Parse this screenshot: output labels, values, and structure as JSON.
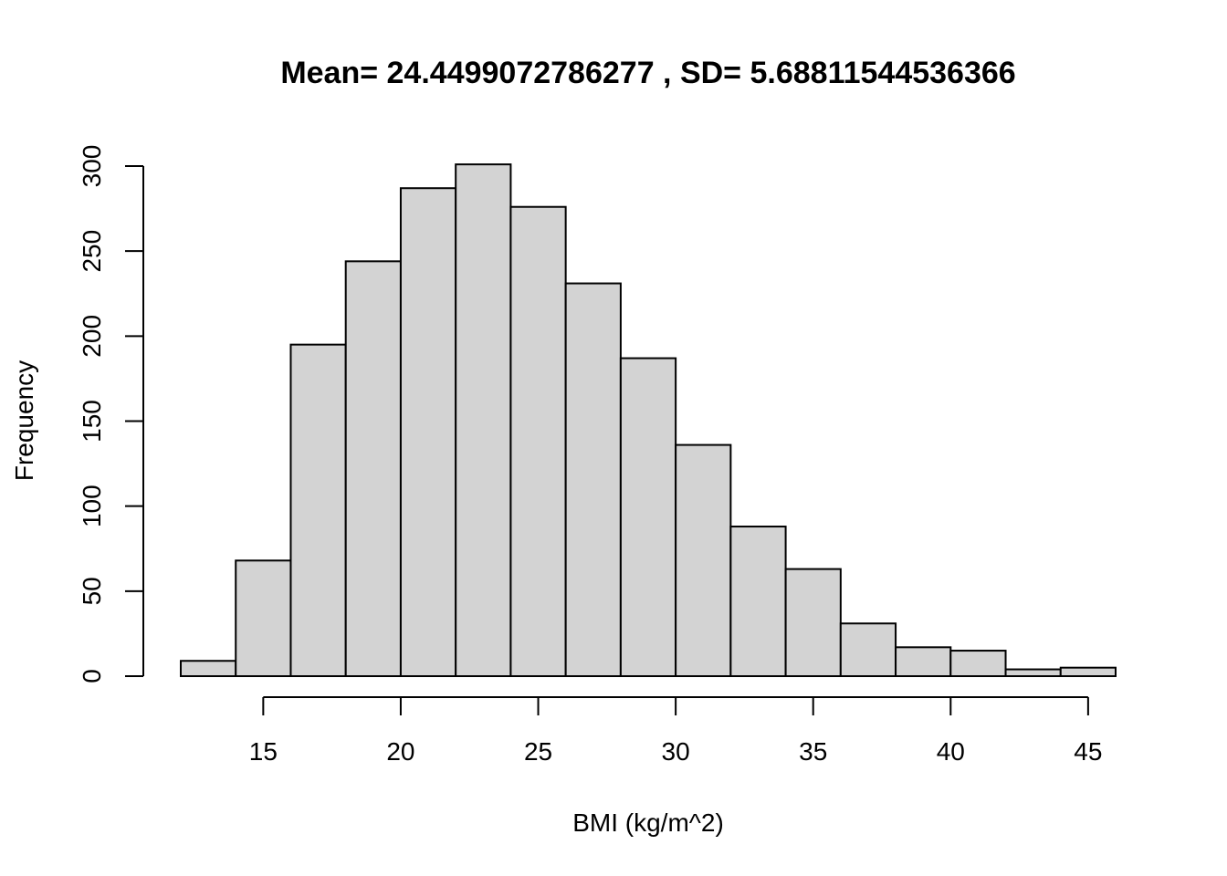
{
  "chart_data": {
    "type": "bar",
    "title": "Mean= 24.4499072786277 , SD= 5.68811544536366",
    "xlabel": "BMI (kg/m^2)",
    "ylabel": "Frequency",
    "bin_edges": [
      12,
      14,
      16,
      18,
      20,
      22,
      24,
      26,
      28,
      30,
      32,
      34,
      36,
      38,
      40,
      42,
      44,
      46
    ],
    "values": [
      9,
      68,
      195,
      244,
      287,
      301,
      276,
      231,
      187,
      136,
      88,
      63,
      31,
      17,
      15,
      4,
      5
    ],
    "xticks": [
      15,
      20,
      25,
      30,
      35,
      40,
      45
    ],
    "yticks": [
      0,
      50,
      100,
      150,
      200,
      250,
      300
    ],
    "xlim": [
      12,
      46
    ],
    "ylim": [
      0,
      301
    ],
    "colors": {
      "bar_fill": "#d3d3d3",
      "bar_stroke": "#000000"
    },
    "grid": false
  }
}
